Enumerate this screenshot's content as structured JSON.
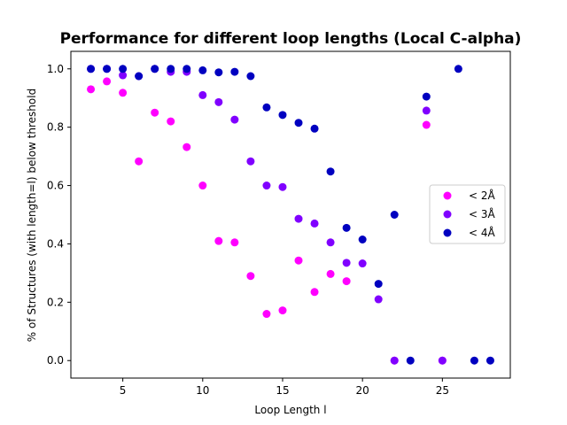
{
  "chart_data": {
    "type": "scatter",
    "title": "Performance for different loop lengths (Local C-alpha)",
    "xlabel": "Loop Length l",
    "ylabel": "% of Structures (with length=l) below threshold",
    "xlim": [
      1.75,
      29.25
    ],
    "ylim": [
      -0.06,
      1.06
    ],
    "xticks": [
      5,
      10,
      15,
      20,
      25
    ],
    "yticks": [
      0.0,
      0.2,
      0.4,
      0.6,
      0.8,
      1.0
    ],
    "xtick_labels": [
      "5",
      "10",
      "15",
      "20",
      "25"
    ],
    "ytick_labels": [
      "0.0",
      "0.2",
      "0.4",
      "0.6",
      "0.8",
      "1.0"
    ],
    "grid": false,
    "legend_position": "center-right",
    "series": [
      {
        "name": "< 2Å",
        "color": "#ff00ff",
        "points": [
          [
            3,
            0.93
          ],
          [
            4,
            0.957
          ],
          [
            5,
            0.918
          ],
          [
            6,
            0.683
          ],
          [
            7,
            0.85
          ],
          [
            8,
            0.82
          ],
          [
            9,
            0.732
          ],
          [
            10,
            0.6
          ],
          [
            11,
            0.41
          ],
          [
            12,
            0.405
          ],
          [
            13,
            0.29
          ],
          [
            14,
            0.16
          ],
          [
            15,
            0.172
          ],
          [
            16,
            0.343
          ],
          [
            17,
            0.235
          ],
          [
            18,
            0.297
          ],
          [
            19,
            0.272
          ],
          [
            22,
            0.0
          ],
          [
            24,
            0.808
          ],
          [
            25,
            0.0
          ]
        ]
      },
      {
        "name": "< 3Å",
        "color": "#8000ff",
        "points": [
          [
            3,
            1.0
          ],
          [
            4,
            1.0
          ],
          [
            5,
            0.978
          ],
          [
            6,
            0.975
          ],
          [
            7,
            1.0
          ],
          [
            8,
            0.99
          ],
          [
            9,
            0.99
          ],
          [
            10,
            0.91
          ],
          [
            11,
            0.886
          ],
          [
            12,
            0.826
          ],
          [
            13,
            0.683
          ],
          [
            14,
            0.6
          ],
          [
            15,
            0.595
          ],
          [
            16,
            0.486
          ],
          [
            17,
            0.47
          ],
          [
            18,
            0.405
          ],
          [
            19,
            0.335
          ],
          [
            20,
            0.333
          ],
          [
            21,
            0.21
          ],
          [
            22,
            0.0
          ],
          [
            24,
            0.857
          ],
          [
            25,
            0.0
          ]
        ]
      },
      {
        "name": "< 4Å",
        "color": "#0000c0",
        "points": [
          [
            3,
            1.0
          ],
          [
            4,
            1.0
          ],
          [
            5,
            1.0
          ],
          [
            6,
            0.975
          ],
          [
            7,
            1.0
          ],
          [
            8,
            1.0
          ],
          [
            9,
            1.0
          ],
          [
            10,
            0.995
          ],
          [
            11,
            0.988
          ],
          [
            12,
            0.99
          ],
          [
            13,
            0.975
          ],
          [
            14,
            0.868
          ],
          [
            15,
            0.842
          ],
          [
            16,
            0.815
          ],
          [
            17,
            0.795
          ],
          [
            18,
            0.648
          ],
          [
            19,
            0.455
          ],
          [
            20,
            0.415
          ],
          [
            21,
            0.263
          ],
          [
            22,
            0.5
          ],
          [
            23,
            0.0
          ],
          [
            24,
            0.905
          ],
          [
            26,
            1.0
          ],
          [
            27,
            0.0
          ],
          [
            28,
            0.0
          ]
        ]
      }
    ]
  }
}
